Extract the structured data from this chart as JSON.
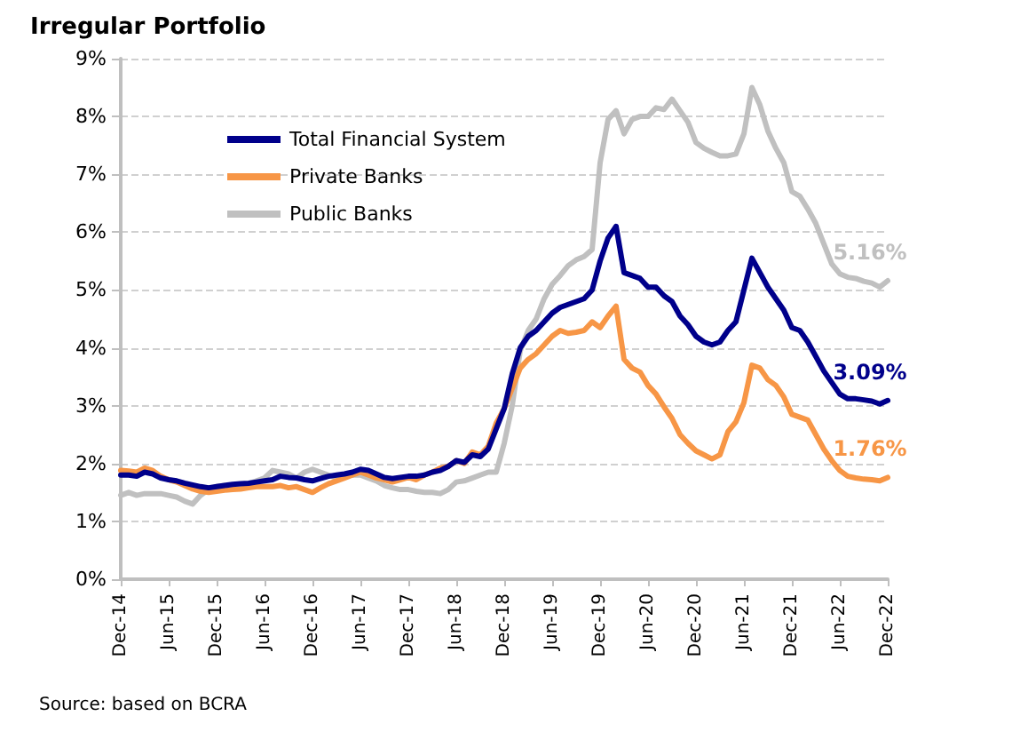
{
  "chart_data": {
    "type": "line",
    "title": "Irregular Portfolio",
    "categories": [
      "Dec-14",
      null,
      null,
      null,
      null,
      null,
      "Jun-15",
      null,
      null,
      null,
      null,
      null,
      "Dec-15",
      null,
      null,
      null,
      null,
      null,
      "Jun-16",
      null,
      null,
      null,
      null,
      null,
      "Dec-16",
      null,
      null,
      null,
      null,
      null,
      "Jun-17",
      null,
      null,
      null,
      null,
      null,
      "Dec-17",
      null,
      null,
      null,
      null,
      null,
      "Jun-18",
      null,
      null,
      null,
      null,
      null,
      "Dec-18",
      null,
      null,
      null,
      null,
      null,
      "Jun-19",
      null,
      null,
      null,
      null,
      null,
      "Dec-19",
      null,
      null,
      null,
      null,
      null,
      "Jun-20",
      null,
      null,
      null,
      null,
      null,
      "Dec-20",
      null,
      null,
      null,
      null,
      null,
      "Jun-21",
      null,
      null,
      null,
      null,
      null,
      "Dec-21",
      null,
      null,
      null,
      null,
      null,
      "Jun-22",
      null,
      null,
      null,
      null,
      null,
      "Dec-22"
    ],
    "series": [
      {
        "name": "Total Financial System",
        "color": "#00008b",
        "values": [
          1.8,
          1.8,
          1.78,
          1.85,
          1.82,
          1.75,
          1.72,
          1.7,
          1.66,
          1.63,
          1.6,
          1.58,
          1.6,
          1.62,
          1.64,
          1.65,
          1.66,
          1.68,
          1.7,
          1.72,
          1.78,
          1.76,
          1.75,
          1.72,
          1.7,
          1.74,
          1.78,
          1.8,
          1.82,
          1.85,
          1.9,
          1.88,
          1.82,
          1.76,
          1.74,
          1.76,
          1.78,
          1.78,
          1.8,
          1.85,
          1.88,
          1.95,
          2.05,
          2.02,
          2.15,
          2.12,
          2.25,
          2.6,
          2.95,
          3.55,
          4.0,
          4.2,
          4.3,
          4.45,
          4.6,
          4.7,
          4.75,
          4.8,
          4.85,
          5.0,
          5.5,
          5.9,
          6.1,
          5.3,
          5.25,
          5.2,
          5.05,
          5.05,
          4.9,
          4.8,
          4.55,
          4.4,
          4.2,
          4.1,
          4.05,
          4.1,
          4.3,
          4.45,
          5.0,
          5.55,
          5.3,
          5.05,
          4.85,
          4.65,
          4.35,
          4.3,
          4.1,
          3.85,
          3.6,
          3.4,
          3.2,
          3.12,
          3.12,
          3.1,
          3.08,
          3.03,
          3.09
        ]
      },
      {
        "name": "Private Banks",
        "color": "#f79646",
        "values": [
          1.88,
          1.87,
          1.85,
          1.92,
          1.88,
          1.78,
          1.72,
          1.68,
          1.62,
          1.56,
          1.52,
          1.5,
          1.52,
          1.54,
          1.55,
          1.56,
          1.58,
          1.6,
          1.6,
          1.6,
          1.62,
          1.58,
          1.6,
          1.55,
          1.5,
          1.58,
          1.65,
          1.7,
          1.75,
          1.8,
          1.85,
          1.8,
          1.75,
          1.72,
          1.68,
          1.72,
          1.76,
          1.72,
          1.8,
          1.85,
          1.92,
          1.95,
          2.05,
          2.0,
          2.2,
          2.15,
          2.3,
          2.7,
          2.95,
          3.3,
          3.65,
          3.8,
          3.9,
          4.05,
          4.2,
          4.3,
          4.25,
          4.27,
          4.3,
          4.45,
          4.35,
          4.55,
          4.72,
          3.8,
          3.65,
          3.58,
          3.35,
          3.2,
          2.98,
          2.78,
          2.5,
          2.35,
          2.22,
          2.15,
          2.08,
          2.15,
          2.55,
          2.72,
          3.05,
          3.7,
          3.65,
          3.45,
          3.35,
          3.15,
          2.85,
          2.8,
          2.75,
          2.5,
          2.25,
          2.05,
          1.88,
          1.78,
          1.75,
          1.73,
          1.72,
          1.7,
          1.76
        ]
      },
      {
        "name": "Public Banks",
        "color": "#c0c0c0",
        "values": [
          1.45,
          1.5,
          1.45,
          1.48,
          1.48,
          1.48,
          1.45,
          1.42,
          1.35,
          1.3,
          1.45,
          1.55,
          1.6,
          1.62,
          1.6,
          1.62,
          1.65,
          1.7,
          1.75,
          1.88,
          1.85,
          1.82,
          1.75,
          1.85,
          1.9,
          1.85,
          1.8,
          1.75,
          1.78,
          1.8,
          1.8,
          1.75,
          1.7,
          1.62,
          1.58,
          1.55,
          1.55,
          1.52,
          1.5,
          1.5,
          1.48,
          1.55,
          1.68,
          1.7,
          1.75,
          1.8,
          1.85,
          1.85,
          2.35,
          3.0,
          3.95,
          4.3,
          4.5,
          4.85,
          5.1,
          5.25,
          5.42,
          5.52,
          5.58,
          5.7,
          7.2,
          7.95,
          8.1,
          7.7,
          7.95,
          8.0,
          8.0,
          8.15,
          8.12,
          8.3,
          8.1,
          7.9,
          7.55,
          7.45,
          7.38,
          7.32,
          7.32,
          7.35,
          7.7,
          8.5,
          8.2,
          7.75,
          7.45,
          7.2,
          6.7,
          6.62,
          6.4,
          6.15,
          5.8,
          5.45,
          5.28,
          5.22,
          5.2,
          5.15,
          5.12,
          5.05,
          5.16
        ]
      }
    ],
    "ylim": [
      0,
      9
    ],
    "yticks": [
      {
        "value": 0,
        "label": "0%"
      },
      {
        "value": 1,
        "label": "1%"
      },
      {
        "value": 2,
        "label": "2%"
      },
      {
        "value": 3,
        "label": "3%"
      },
      {
        "value": 4,
        "label": "4%"
      },
      {
        "value": 5,
        "label": "5%"
      },
      {
        "value": 6,
        "label": "6%"
      },
      {
        "value": 7,
        "label": "7%"
      },
      {
        "value": 8,
        "label": "8%"
      },
      {
        "value": 9,
        "label": "9%"
      }
    ],
    "grid": "y",
    "legend": "top left",
    "marker": "none",
    "line_style": "solid",
    "annotations": [
      {
        "text": "5.16%",
        "x": "Dec-22",
        "y": 5.16
      },
      {
        "text": "3.09%",
        "x": "Dec-22",
        "y": 3.09
      },
      {
        "text": "1.76%",
        "x": "Dec-22",
        "y": 1.76
      },
      "Source: based on BCRA"
    ]
  }
}
